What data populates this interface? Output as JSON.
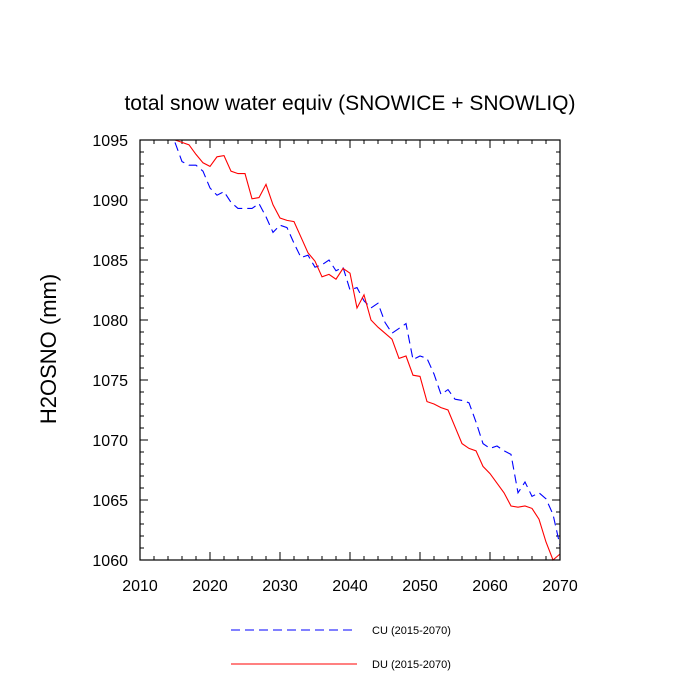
{
  "chart_data": {
    "type": "line",
    "title": "total snow water equiv (SNOWICE + SNOWLIQ)",
    "xlabel": "",
    "ylabel": "H2OSNO  (mm)",
    "xlim": [
      2010,
      2070
    ],
    "ylim": [
      1060,
      1095
    ],
    "xticks": [
      2010,
      2020,
      2030,
      2040,
      2050,
      2060,
      2070
    ],
    "yticks": [
      1060,
      1065,
      1070,
      1075,
      1080,
      1085,
      1090,
      1095
    ],
    "x": [
      2015,
      2016,
      2017,
      2018,
      2019,
      2020,
      2021,
      2022,
      2023,
      2024,
      2025,
      2026,
      2027,
      2028,
      2029,
      2030,
      2031,
      2032,
      2033,
      2034,
      2035,
      2036,
      2037,
      2038,
      2039,
      2040,
      2041,
      2042,
      2043,
      2044,
      2045,
      2046,
      2047,
      2048,
      2049,
      2050,
      2051,
      2052,
      2053,
      2054,
      2055,
      2056,
      2057,
      2058,
      2059,
      2060,
      2061,
      2062,
      2063,
      2064,
      2065,
      2066,
      2067,
      2068,
      2069,
      2070
    ],
    "series": [
      {
        "name": "CU (2015-2070)",
        "color": "#0000ff",
        "dash": "dashed",
        "values": [
          1094.8,
          1093.2,
          1092.9,
          1092.9,
          1092.4,
          1091.0,
          1090.4,
          1090.7,
          1089.8,
          1089.3,
          1089.3,
          1089.3,
          1089.7,
          1088.6,
          1087.3,
          1087.9,
          1087.7,
          1086.4,
          1085.2,
          1085.4,
          1084.4,
          1084.6,
          1085.0,
          1084.1,
          1084.4,
          1082.5,
          1082.7,
          1081.6,
          1081.0,
          1081.4,
          1079.8,
          1078.9,
          1079.3,
          1079.7,
          1076.7,
          1077.0,
          1076.8,
          1075.5,
          1073.8,
          1074.2,
          1073.4,
          1073.3,
          1073.1,
          1071.5,
          1069.7,
          1069.3,
          1069.5,
          1069.1,
          1068.8,
          1065.6,
          1066.5,
          1065.3,
          1065.6,
          1065.1,
          1063.8,
          1061.2
        ]
      },
      {
        "name": "DU (2015-2070)",
        "color": "#ff0000",
        "dash": "solid",
        "values": [
          1095.0,
          1094.8,
          1094.6,
          1093.8,
          1093.1,
          1092.8,
          1093.6,
          1093.7,
          1092.4,
          1092.2,
          1092.2,
          1090.1,
          1090.2,
          1091.3,
          1089.6,
          1088.5,
          1088.3,
          1088.2,
          1086.9,
          1085.6,
          1084.9,
          1083.6,
          1083.8,
          1083.4,
          1084.3,
          1083.9,
          1081.0,
          1082.1,
          1080.0,
          1079.4,
          1078.9,
          1078.4,
          1076.8,
          1077.0,
          1075.4,
          1075.3,
          1073.2,
          1073.0,
          1072.7,
          1072.5,
          1071.1,
          1069.7,
          1069.3,
          1069.1,
          1067.8,
          1067.2,
          1066.4,
          1065.6,
          1064.5,
          1064.4,
          1064.5,
          1064.3,
          1063.4,
          1061.5,
          1060.0,
          1060.5
        ]
      }
    ],
    "legend": {
      "position": "bottom",
      "entries": [
        "CU (2015-2070)",
        "DU (2015-2070)"
      ]
    },
    "grid": false
  }
}
